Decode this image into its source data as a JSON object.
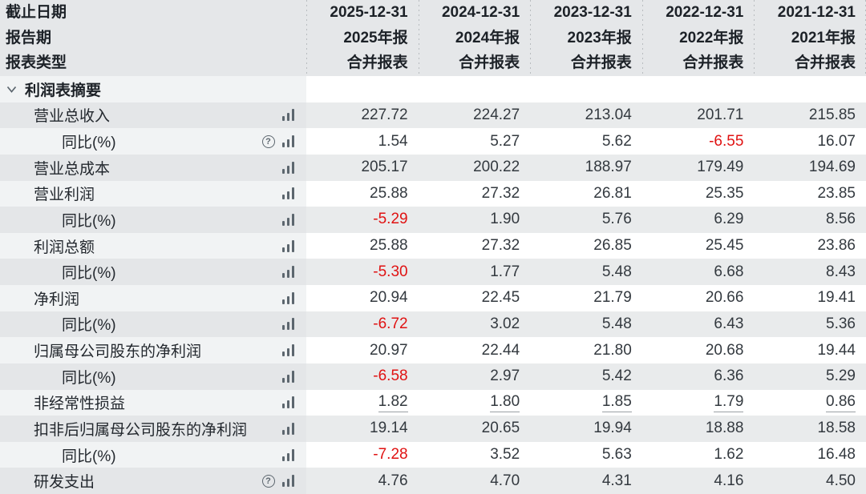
{
  "header": {
    "row_labels": [
      "截止日期",
      "报告期",
      "报表类型"
    ],
    "columns": [
      {
        "date": "2025-12-31",
        "period": "2025年报",
        "type": "合并报表"
      },
      {
        "date": "2024-12-31",
        "period": "2024年报",
        "type": "合并报表"
      },
      {
        "date": "2023-12-31",
        "period": "2023年报",
        "type": "合并报表"
      },
      {
        "date": "2022-12-31",
        "period": "2022年报",
        "type": "合并报表"
      },
      {
        "date": "2021-12-31",
        "period": "2021年报",
        "type": "合并报表"
      }
    ]
  },
  "rows": [
    {
      "label": "利润表摘要",
      "section": true,
      "indent": 0,
      "help": false,
      "chart": false,
      "underline": false,
      "values": [
        "",
        "",
        "",
        "",
        ""
      ]
    },
    {
      "label": "营业总收入",
      "section": false,
      "indent": 1,
      "help": false,
      "chart": true,
      "underline": false,
      "values": [
        "227.72",
        "224.27",
        "213.04",
        "201.71",
        "215.85"
      ]
    },
    {
      "label": "同比(%)",
      "section": false,
      "indent": 2,
      "help": true,
      "chart": true,
      "underline": false,
      "values": [
        "1.54",
        "5.27",
        "5.62",
        "-6.55",
        "16.07"
      ]
    },
    {
      "label": "营业总成本",
      "section": false,
      "indent": 1,
      "help": false,
      "chart": true,
      "underline": false,
      "values": [
        "205.17",
        "200.22",
        "188.97",
        "179.49",
        "194.69"
      ]
    },
    {
      "label": "营业利润",
      "section": false,
      "indent": 1,
      "help": false,
      "chart": true,
      "underline": false,
      "values": [
        "25.88",
        "27.32",
        "26.81",
        "25.35",
        "23.85"
      ]
    },
    {
      "label": "同比(%)",
      "section": false,
      "indent": 2,
      "help": false,
      "chart": true,
      "underline": false,
      "values": [
        "-5.29",
        "1.90",
        "5.76",
        "6.29",
        "8.56"
      ]
    },
    {
      "label": "利润总额",
      "section": false,
      "indent": 1,
      "help": false,
      "chart": true,
      "underline": false,
      "values": [
        "25.88",
        "27.32",
        "26.85",
        "25.45",
        "23.86"
      ]
    },
    {
      "label": "同比(%)",
      "section": false,
      "indent": 2,
      "help": false,
      "chart": true,
      "underline": false,
      "values": [
        "-5.30",
        "1.77",
        "5.48",
        "6.68",
        "8.43"
      ]
    },
    {
      "label": "净利润",
      "section": false,
      "indent": 1,
      "help": false,
      "chart": true,
      "underline": false,
      "values": [
        "20.94",
        "22.45",
        "21.79",
        "20.66",
        "19.41"
      ]
    },
    {
      "label": "同比(%)",
      "section": false,
      "indent": 2,
      "help": false,
      "chart": true,
      "underline": false,
      "values": [
        "-6.72",
        "3.02",
        "5.48",
        "6.43",
        "5.36"
      ]
    },
    {
      "label": "归属母公司股东的净利润",
      "section": false,
      "indent": 1,
      "help": false,
      "chart": true,
      "underline": false,
      "values": [
        "20.97",
        "22.44",
        "21.80",
        "20.68",
        "19.44"
      ]
    },
    {
      "label": "同比(%)",
      "section": false,
      "indent": 2,
      "help": false,
      "chart": true,
      "underline": false,
      "values": [
        "-6.58",
        "2.97",
        "5.42",
        "6.36",
        "5.29"
      ]
    },
    {
      "label": "非经常性损益",
      "section": false,
      "indent": 1,
      "help": false,
      "chart": true,
      "underline": true,
      "values": [
        "1.82",
        "1.80",
        "1.85",
        "1.79",
        "0.86"
      ]
    },
    {
      "label": "扣非后归属母公司股东的净利润",
      "section": false,
      "indent": 1,
      "help": false,
      "chart": true,
      "underline": false,
      "values": [
        "19.14",
        "20.65",
        "19.94",
        "18.88",
        "18.58"
      ]
    },
    {
      "label": "同比(%)",
      "section": false,
      "indent": 2,
      "help": false,
      "chart": true,
      "underline": false,
      "values": [
        "-7.28",
        "3.52",
        "5.63",
        "1.62",
        "16.48"
      ]
    },
    {
      "label": "研发支出",
      "section": false,
      "indent": 1,
      "help": true,
      "chart": true,
      "underline": false,
      "values": [
        "4.76",
        "4.70",
        "4.31",
        "4.16",
        "4.50"
      ]
    }
  ],
  "colors": {
    "negative": "#e01212",
    "header_bg": "#e5e7e9",
    "stripe_gray": "#e9ebec",
    "stripe_label_gray": "#e4e6e8",
    "stripe_label_light": "#f1f3f4",
    "icon_gray": "#5c666e"
  },
  "icons": {
    "collapse": "chevron-down-icon",
    "chart": "bar-chart-icon",
    "help": "help-icon"
  }
}
